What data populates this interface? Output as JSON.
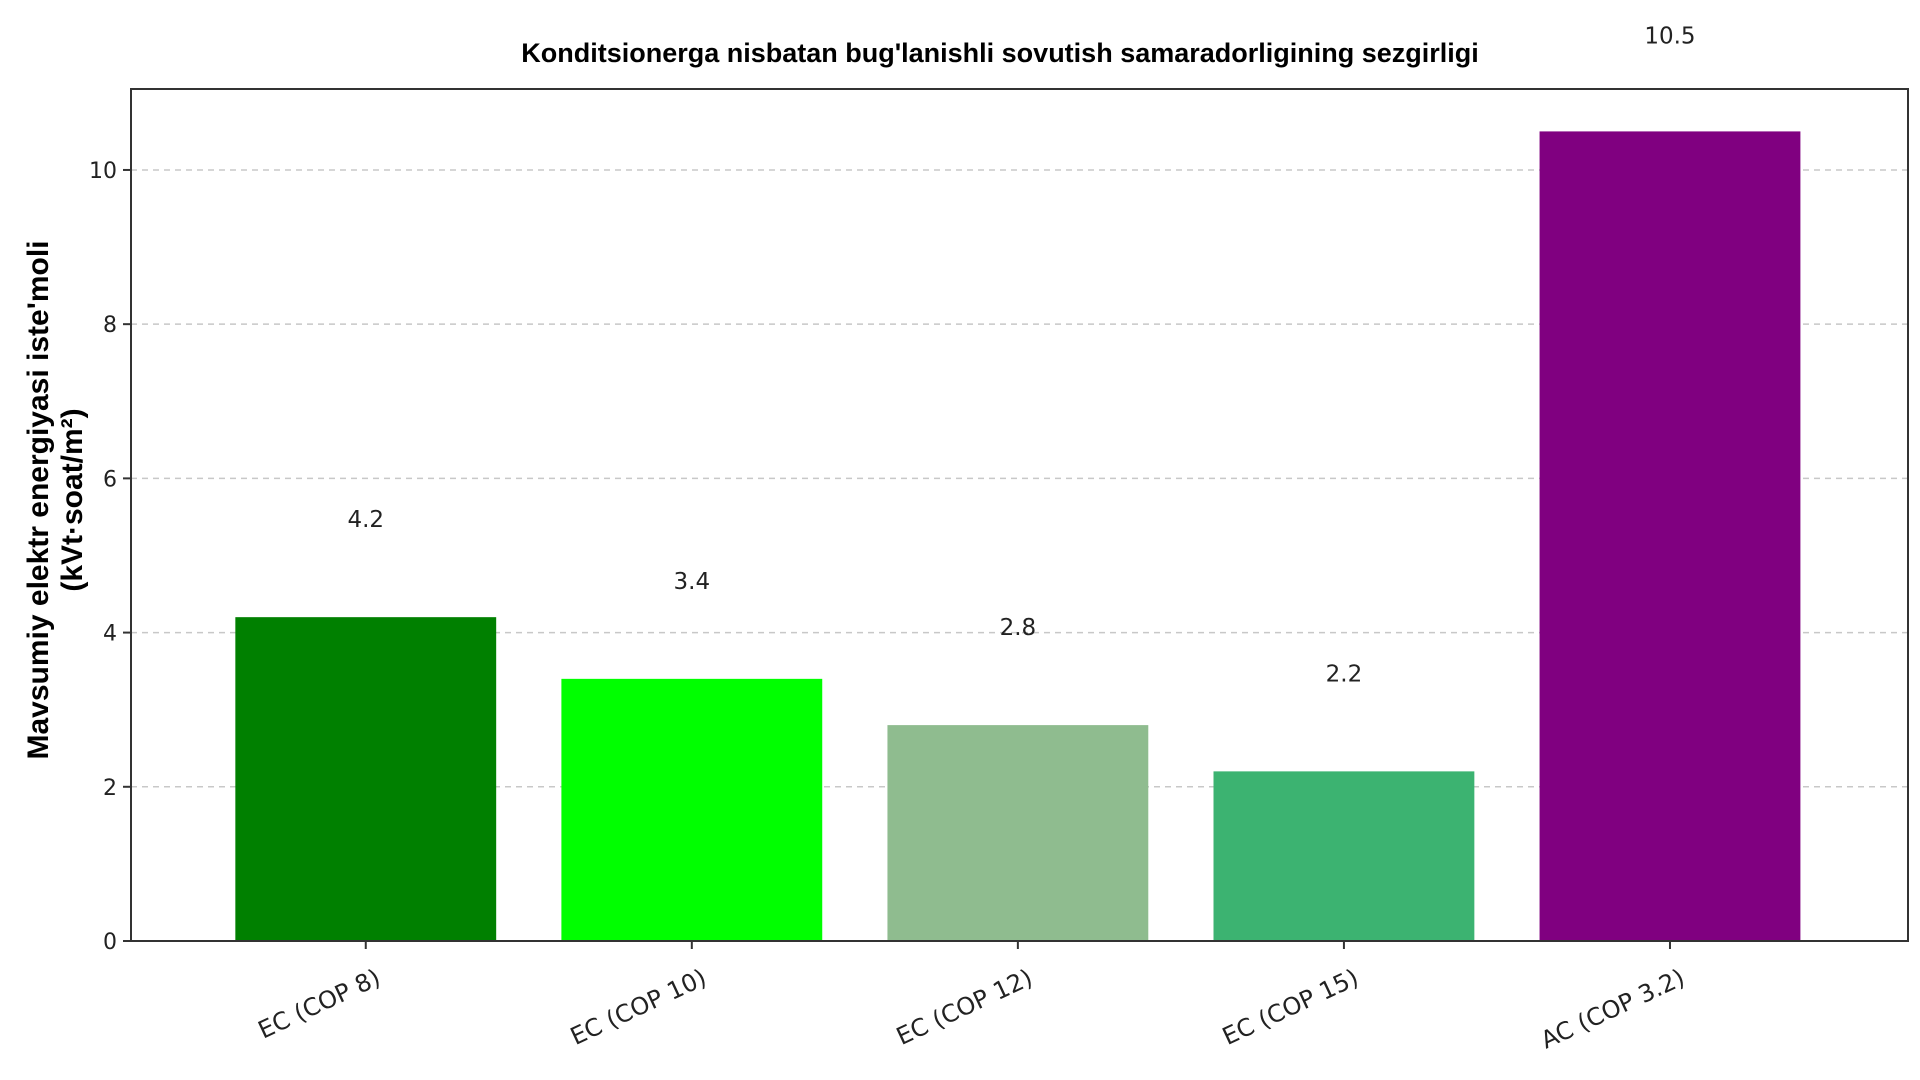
{
  "chart_data": {
    "type": "bar",
    "title": "Konditsionerga nisbatan bug'lanishli sovutish samaradorligining sezgirligi",
    "xlabel": "",
    "ylabel": "Mavsumiy elektr energiyasi iste'moli\n(kVt·soat/m²)",
    "categories": [
      "EC (COP 8)",
      "EC (COP 10)",
      "EC (COP 12)",
      "EC (COP 15)",
      "AC (COP 3.2)"
    ],
    "values": [
      4.2,
      3.4,
      2.8,
      2.2,
      10.5
    ],
    "value_labels": [
      "4.2",
      "3.4",
      "2.8",
      "2.2",
      "10.5"
    ],
    "colors": [
      "#008000",
      "#00ff00",
      "#8fbc8f",
      "#3cb371",
      "#800080"
    ],
    "ylim": [
      0,
      11.05
    ],
    "yticks": [
      0,
      2,
      4,
      6,
      8,
      10
    ],
    "grid": true,
    "grid_axis": "y",
    "legend": false
  }
}
